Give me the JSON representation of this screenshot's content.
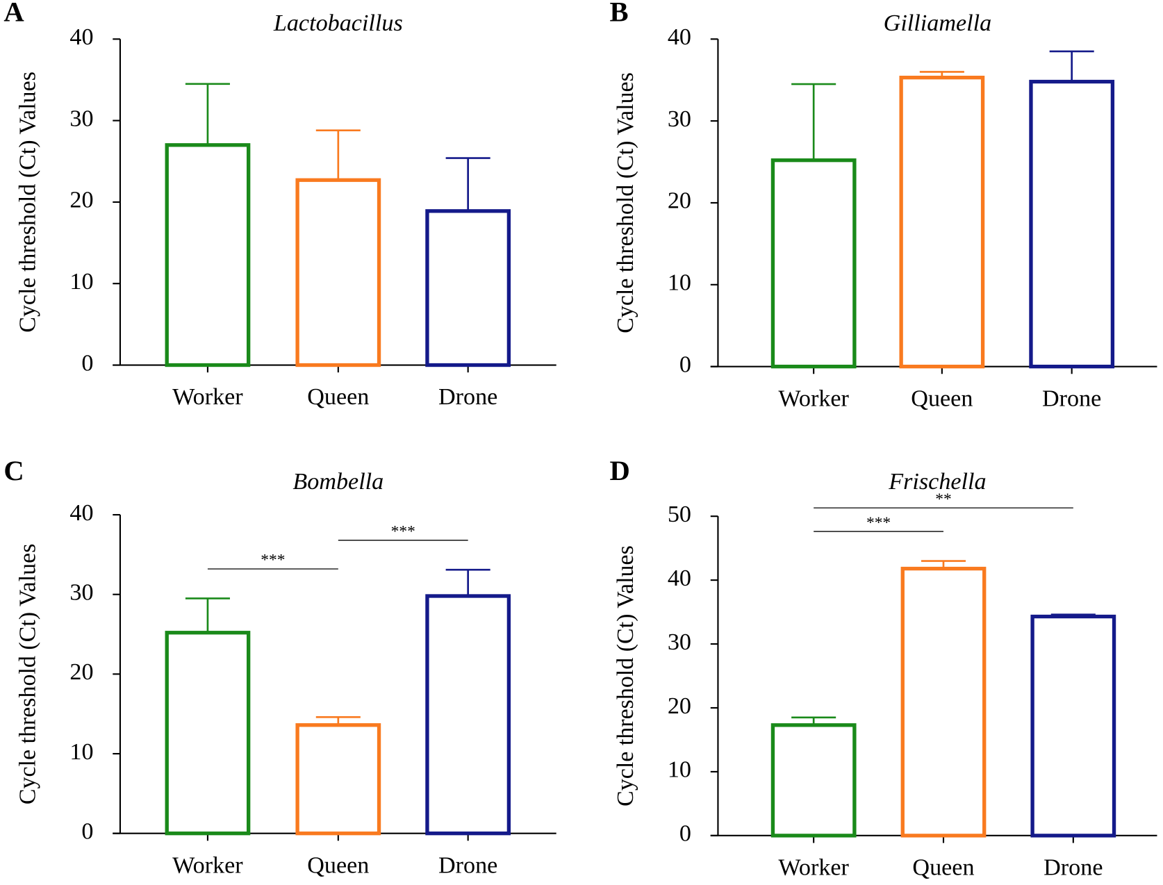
{
  "chart_data": [
    {
      "type": "bar",
      "panel_label": "A",
      "title": "Lactobacillus",
      "y_label": "Cycle threshold (Ct) Values",
      "categories": [
        "Worker",
        "Queen",
        "Drone"
      ],
      "values": [
        27,
        22.7,
        18.9
      ],
      "errors": [
        7.5,
        6.1,
        6.5
      ],
      "colors": [
        "#1a8a1a",
        "#f97a1f",
        "#141a8a"
      ],
      "ylim": [
        0,
        40
      ],
      "yticks": [
        0,
        10,
        20,
        30,
        40
      ],
      "annotations": []
    },
    {
      "type": "bar",
      "panel_label": "B",
      "title": "Gilliamella",
      "y_label": "Cycle threshold (Ct) Values",
      "categories": [
        "Worker",
        "Queen",
        "Drone"
      ],
      "values": [
        25.2,
        35.3,
        34.8
      ],
      "errors": [
        9.3,
        0.7,
        3.7
      ],
      "colors": [
        "#1a8a1a",
        "#f97a1f",
        "#141a8a"
      ],
      "ylim": [
        0,
        40
      ],
      "yticks": [
        0,
        10,
        20,
        30,
        40
      ],
      "annotations": []
    },
    {
      "type": "bar",
      "panel_label": "C",
      "title": "Bombella",
      "y_label": "Cycle threshold (Ct) Values",
      "categories": [
        "Worker",
        "Queen",
        "Drone"
      ],
      "values": [
        25.2,
        13.6,
        29.8
      ],
      "errors": [
        4.3,
        1.0,
        3.3
      ],
      "colors": [
        "#1a8a1a",
        "#f97a1f",
        "#141a8a"
      ],
      "ylim": [
        0,
        40
      ],
      "yticks": [
        0,
        10,
        20,
        30,
        40
      ],
      "annotations": [
        {
          "text": "***",
          "from": "Worker",
          "to": "Queen"
        },
        {
          "text": "***",
          "from": "Queen",
          "to": "Drone"
        }
      ]
    },
    {
      "type": "bar",
      "panel_label": "D",
      "title": "Frischella",
      "y_label": "Cycle threshold (Ct) Values",
      "categories": [
        "Worker",
        "Queen",
        "Drone"
      ],
      "values": [
        17.3,
        41.8,
        34.3
      ],
      "errors": [
        1.2,
        1.2,
        0.3
      ],
      "colors": [
        "#1a8a1a",
        "#f97a1f",
        "#141a8a"
      ],
      "ylim": [
        0,
        50
      ],
      "yticks": [
        0,
        10,
        20,
        30,
        40,
        50
      ],
      "annotations": [
        {
          "text": "***",
          "from": "Worker",
          "to": "Queen"
        },
        {
          "text": "**",
          "from": "Worker",
          "to": "Drone"
        }
      ]
    }
  ]
}
